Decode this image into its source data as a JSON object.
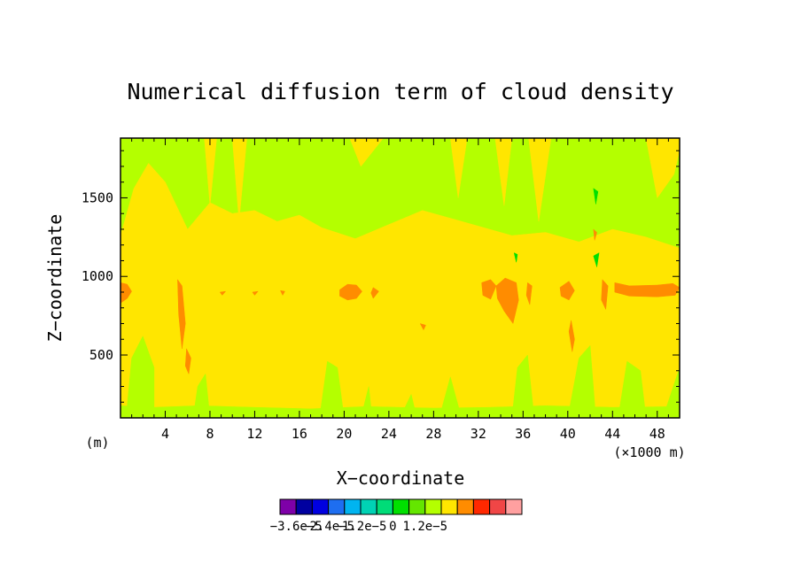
{
  "chart_data": {
    "type": "heatmap",
    "title": "Numerical diffusion term of cloud density",
    "xlabel": "X−coordinate",
    "ylabel": "Z−coordinate",
    "x_unit": "(m)",
    "x_multiplier_label": "(×1000 m)",
    "xlim": [
      0,
      50
    ],
    "ylim": [
      100,
      1880
    ],
    "x_ticks": [
      4,
      8,
      12,
      16,
      20,
      24,
      28,
      32,
      36,
      40,
      44,
      48
    ],
    "x_tick_labels": [
      "4",
      "8",
      "12",
      "16",
      "20",
      "24",
      "28",
      "32",
      "36",
      "40",
      "44",
      "48"
    ],
    "y_ticks": [
      500,
      1000,
      1500
    ],
    "y_tick_labels": [
      "500",
      "1000",
      "1500"
    ],
    "colorbar": {
      "levels": [
        -3.6e-05,
        -3e-05,
        -2.4e-05,
        -1.8e-05,
        -1.2e-05,
        -6e-06,
        0,
        6e-06,
        1.2e-05,
        1.8e-05
      ],
      "colors": [
        "#7e00a8",
        "#0000a0",
        "#0000e0",
        "#1e6ef0",
        "#00b4f0",
        "#00d2b4",
        "#00dc78",
        "#00e000",
        "#64e600",
        "#b4ff00",
        "#ffe600",
        "#ff8c00",
        "#ff2800",
        "#f04646",
        "#ffa0a0"
      ],
      "labels": [
        {
          "value": -3.6e-05,
          "text": "−3.6e−5"
        },
        {
          "value": -2.4e-05,
          "text": "−2.4e−5"
        },
        {
          "value": -1.2e-05,
          "text": "−1.2e−5"
        },
        {
          "value": 0,
          "text": "0"
        },
        {
          "value": 1.2e-05,
          "text": "1.2e−5"
        }
      ]
    },
    "field": {
      "background_color": "#b4ff00",
      "regions": [
        {
          "color": "#ffe600",
          "points": [
            [
              0,
              180
            ],
            [
              3,
              170
            ],
            [
              7,
              180
            ],
            [
              12,
              170
            ],
            [
              17,
              160
            ],
            [
              22,
              175
            ],
            [
              28,
              165
            ],
            [
              33,
              170
            ],
            [
              38,
              180
            ],
            [
              44,
              170
            ],
            [
              50,
              175
            ],
            [
              50,
              1180
            ],
            [
              47,
              1250
            ],
            [
              44,
              1300
            ],
            [
              41,
              1220
            ],
            [
              38,
              1280
            ],
            [
              35,
              1260
            ],
            [
              33,
              1300
            ],
            [
              30,
              1360
            ],
            [
              27,
              1420
            ],
            [
              24,
              1330
            ],
            [
              21,
              1240
            ],
            [
              18,
              1310
            ],
            [
              16,
              1390
            ],
            [
              14,
              1350
            ],
            [
              12,
              1420
            ],
            [
              10,
              1400
            ],
            [
              8,
              1470
            ],
            [
              6,
              1300
            ],
            [
              4,
              1600
            ],
            [
              2.5,
              1720
            ],
            [
              1.2,
              1560
            ],
            [
              0,
              1260
            ]
          ]
        },
        {
          "color": "#ffe600",
          "points": [
            [
              7.5,
              1880
            ],
            [
              8,
              1450
            ],
            [
              8.6,
              1880
            ]
          ]
        },
        {
          "color": "#ffe600",
          "points": [
            [
              10,
              1880
            ],
            [
              10.6,
              1350
            ],
            [
              11.3,
              1880
            ]
          ]
        },
        {
          "color": "#ffe600",
          "points": [
            [
              20.5,
              1880
            ],
            [
              21.5,
              1700
            ],
            [
              23.5,
              1880
            ]
          ]
        },
        {
          "color": "#ffe600",
          "points": [
            [
              29.5,
              1880
            ],
            [
              30.2,
              1500
            ],
            [
              31,
              1880
            ]
          ]
        },
        {
          "color": "#ffe600",
          "points": [
            [
              33.5,
              1880
            ],
            [
              34.3,
              1450
            ],
            [
              35,
              1880
            ]
          ]
        },
        {
          "color": "#ffe600",
          "points": [
            [
              36.5,
              1880
            ],
            [
              37.4,
              1350
            ],
            [
              38.5,
              1880
            ]
          ]
        },
        {
          "color": "#ffe600",
          "points": [
            [
              47,
              1880
            ],
            [
              48,
              1500
            ],
            [
              49.5,
              1650
            ],
            [
              50,
              1800
            ],
            [
              50,
              1880
            ]
          ]
        },
        {
          "color": "#b4ff00",
          "points": [
            [
              0.5,
              100
            ],
            [
              3,
              100
            ],
            [
              3,
              420
            ],
            [
              2,
              620
            ],
            [
              1,
              480
            ]
          ]
        },
        {
          "color": "#b4ff00",
          "points": [
            [
              6.5,
              100
            ],
            [
              8,
              100
            ],
            [
              7.6,
              380
            ],
            [
              6.9,
              300
            ]
          ]
        },
        {
          "color": "#b4ff00",
          "points": [
            [
              17.8,
              100
            ],
            [
              20,
              100
            ],
            [
              19.4,
              420
            ],
            [
              18.5,
              460
            ]
          ]
        },
        {
          "color": "#b4ff00",
          "points": [
            [
              21.5,
              100
            ],
            [
              22.5,
              100
            ],
            [
              22.2,
              300
            ]
          ]
        },
        {
          "color": "#b4ff00",
          "points": [
            [
              25,
              100
            ],
            [
              26.5,
              100
            ],
            [
              26,
              250
            ]
          ]
        },
        {
          "color": "#b4ff00",
          "points": [
            [
              28.5,
              100
            ],
            [
              30.5,
              100
            ],
            [
              29.5,
              360
            ]
          ]
        },
        {
          "color": "#b4ff00",
          "points": [
            [
              35,
              100
            ],
            [
              37,
              100
            ],
            [
              36.4,
              500
            ],
            [
              35.5,
              420
            ]
          ]
        },
        {
          "color": "#b4ff00",
          "points": [
            [
              40,
              100
            ],
            [
              42.5,
              100
            ],
            [
              42,
              560
            ],
            [
              41,
              480
            ]
          ]
        },
        {
          "color": "#b4ff00",
          "points": [
            [
              44.5,
              100
            ],
            [
              47,
              100
            ],
            [
              46.5,
              400
            ],
            [
              45.3,
              460
            ]
          ]
        },
        {
          "color": "#b4ff00",
          "points": [
            [
              48.5,
              100
            ],
            [
              50,
              100
            ],
            [
              50,
              420
            ]
          ]
        },
        {
          "color": "#ff8c00",
          "points": [
            [
              0,
              830
            ],
            [
              0.6,
              860
            ],
            [
              1,
              905
            ],
            [
              0.6,
              950
            ],
            [
              0,
              960
            ]
          ]
        },
        {
          "color": "#ff8c00",
          "points": [
            [
              5.1,
              980
            ],
            [
              5.5,
              940
            ],
            [
              5.8,
              700
            ],
            [
              5.5,
              540
            ],
            [
              5.2,
              760
            ]
          ]
        },
        {
          "color": "#ff8c00",
          "points": [
            [
              5.9,
              540
            ],
            [
              6.3,
              480
            ],
            [
              6.1,
              380
            ],
            [
              5.8,
              430
            ]
          ]
        },
        {
          "color": "#ff8c00",
          "points": [
            [
              19.6,
              915
            ],
            [
              20.3,
              950
            ],
            [
              21.1,
              945
            ],
            [
              21.6,
              905
            ],
            [
              21.1,
              860
            ],
            [
              20.3,
              850
            ],
            [
              19.6,
              875
            ]
          ]
        },
        {
          "color": "#ff8c00",
          "points": [
            [
              22.6,
              930
            ],
            [
              23.1,
              905
            ],
            [
              22.6,
              860
            ],
            [
              22.4,
              895
            ]
          ]
        },
        {
          "color": "#ff8c00",
          "points": [
            [
              32.3,
              960
            ],
            [
              33.1,
              980
            ],
            [
              33.6,
              940
            ],
            [
              33.1,
              855
            ],
            [
              32.4,
              880
            ]
          ]
        },
        {
          "color": "#ff8c00",
          "points": [
            [
              33.6,
              940
            ],
            [
              34.4,
              990
            ],
            [
              35.4,
              960
            ],
            [
              35.6,
              850
            ],
            [
              35.1,
              700
            ],
            [
              34.3,
              780
            ],
            [
              33.7,
              860
            ]
          ]
        },
        {
          "color": "#ff8c00",
          "points": [
            [
              36.4,
              960
            ],
            [
              36.8,
              940
            ],
            [
              36.6,
              820
            ],
            [
              36.3,
              880
            ]
          ]
        },
        {
          "color": "#ff8c00",
          "points": [
            [
              39.3,
              930
            ],
            [
              40.1,
              970
            ],
            [
              40.6,
              910
            ],
            [
              40.1,
              850
            ],
            [
              39.4,
              875
            ]
          ]
        },
        {
          "color": "#ff8c00",
          "points": [
            [
              40.3,
              720
            ],
            [
              40.6,
              600
            ],
            [
              40.4,
              520
            ],
            [
              40.1,
              650
            ]
          ]
        },
        {
          "color": "#ff8c00",
          "points": [
            [
              43.1,
              980
            ],
            [
              43.6,
              940
            ],
            [
              43.4,
              790
            ],
            [
              43.0,
              850
            ]
          ]
        },
        {
          "color": "#ff8c00",
          "points": [
            [
              44.2,
              960
            ],
            [
              45.5,
              940
            ],
            [
              48,
              945
            ],
            [
              49.4,
              955
            ],
            [
              50,
              930
            ],
            [
              49.6,
              880
            ],
            [
              48,
              870
            ],
            [
              45.5,
              875
            ],
            [
              44.2,
              900
            ]
          ]
        },
        {
          "color": "#ff8c00",
          "points": [
            [
              26.8,
              700
            ],
            [
              27.3,
              690
            ],
            [
              27.1,
              660
            ]
          ]
        },
        {
          "color": "#ff8c00",
          "points": [
            [
              42.3,
              1300
            ],
            [
              42.6,
              1280
            ],
            [
              42.4,
              1230
            ]
          ]
        },
        {
          "color": "#ff8c00",
          "points": [
            [
              8.9,
              900
            ],
            [
              9.4,
              905
            ],
            [
              9.1,
              880
            ]
          ]
        },
        {
          "color": "#ff8c00",
          "points": [
            [
              11.8,
              900
            ],
            [
              12.3,
              905
            ],
            [
              12.0,
              880
            ]
          ]
        },
        {
          "color": "#ff8c00",
          "points": [
            [
              14.3,
              910
            ],
            [
              14.7,
              905
            ],
            [
              14.5,
              880
            ]
          ]
        },
        {
          "color": "#00e000",
          "points": [
            [
              42.3,
              1130
            ],
            [
              42.8,
              1150
            ],
            [
              42.6,
              1060
            ]
          ]
        },
        {
          "color": "#00e000",
          "points": [
            [
              42.3,
              1560
            ],
            [
              42.7,
              1540
            ],
            [
              42.5,
              1460
            ]
          ]
        },
        {
          "color": "#00e000",
          "points": [
            [
              35.2,
              1150
            ],
            [
              35.5,
              1140
            ],
            [
              35.4,
              1090
            ]
          ]
        }
      ]
    }
  }
}
